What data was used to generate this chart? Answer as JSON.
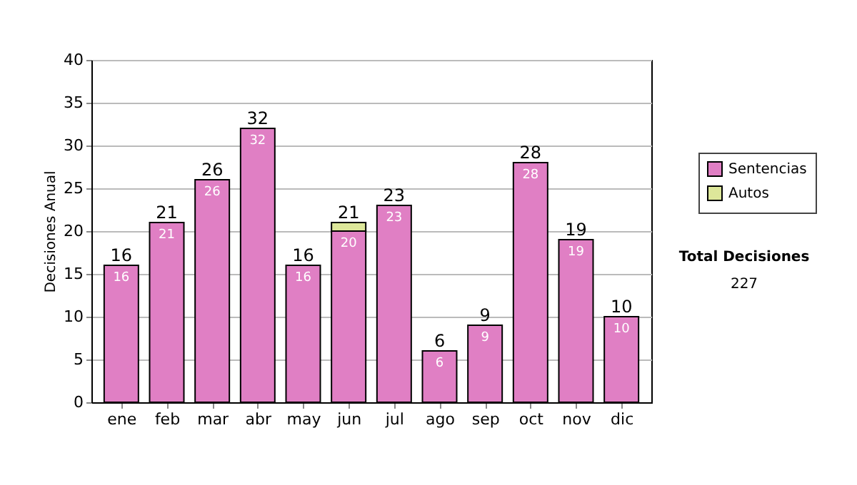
{
  "chart_data": {
    "type": "bar",
    "stacked": true,
    "ylabel": "Decisiones Anual",
    "categories": [
      "ene",
      "feb",
      "mar",
      "abr",
      "may",
      "jun",
      "jul",
      "ago",
      "sep",
      "oct",
      "nov",
      "dic"
    ],
    "series": [
      {
        "name": "Sentencias",
        "color": "#e07fc4",
        "values": [
          16,
          21,
          26,
          32,
          16,
          20,
          23,
          6,
          9,
          28,
          19,
          10
        ],
        "value_labels": [
          "16",
          "21",
          "26",
          "32",
          "16",
          "20",
          "23",
          "6",
          "9",
          "28",
          "19",
          "10"
        ]
      },
      {
        "name": "Autos",
        "color": "#dde79a",
        "values": [
          null,
          null,
          null,
          null,
          null,
          1,
          null,
          null,
          null,
          null,
          null,
          null
        ],
        "value_labels": [
          null,
          null,
          null,
          null,
          null,
          null,
          null,
          null,
          null,
          null,
          null,
          null
        ]
      }
    ],
    "totals": [
      "16",
      "21",
      "26",
      "32",
      "16",
      "21",
      "23",
      "6",
      "9",
      "28",
      "19",
      "10"
    ],
    "ylim": [
      0,
      40
    ],
    "yticks": [
      0,
      5,
      10,
      15,
      20,
      25,
      30,
      35,
      40
    ],
    "grid": "y",
    "legend": "right",
    "annotations": [
      "Total Decisiones",
      "227"
    ]
  }
}
